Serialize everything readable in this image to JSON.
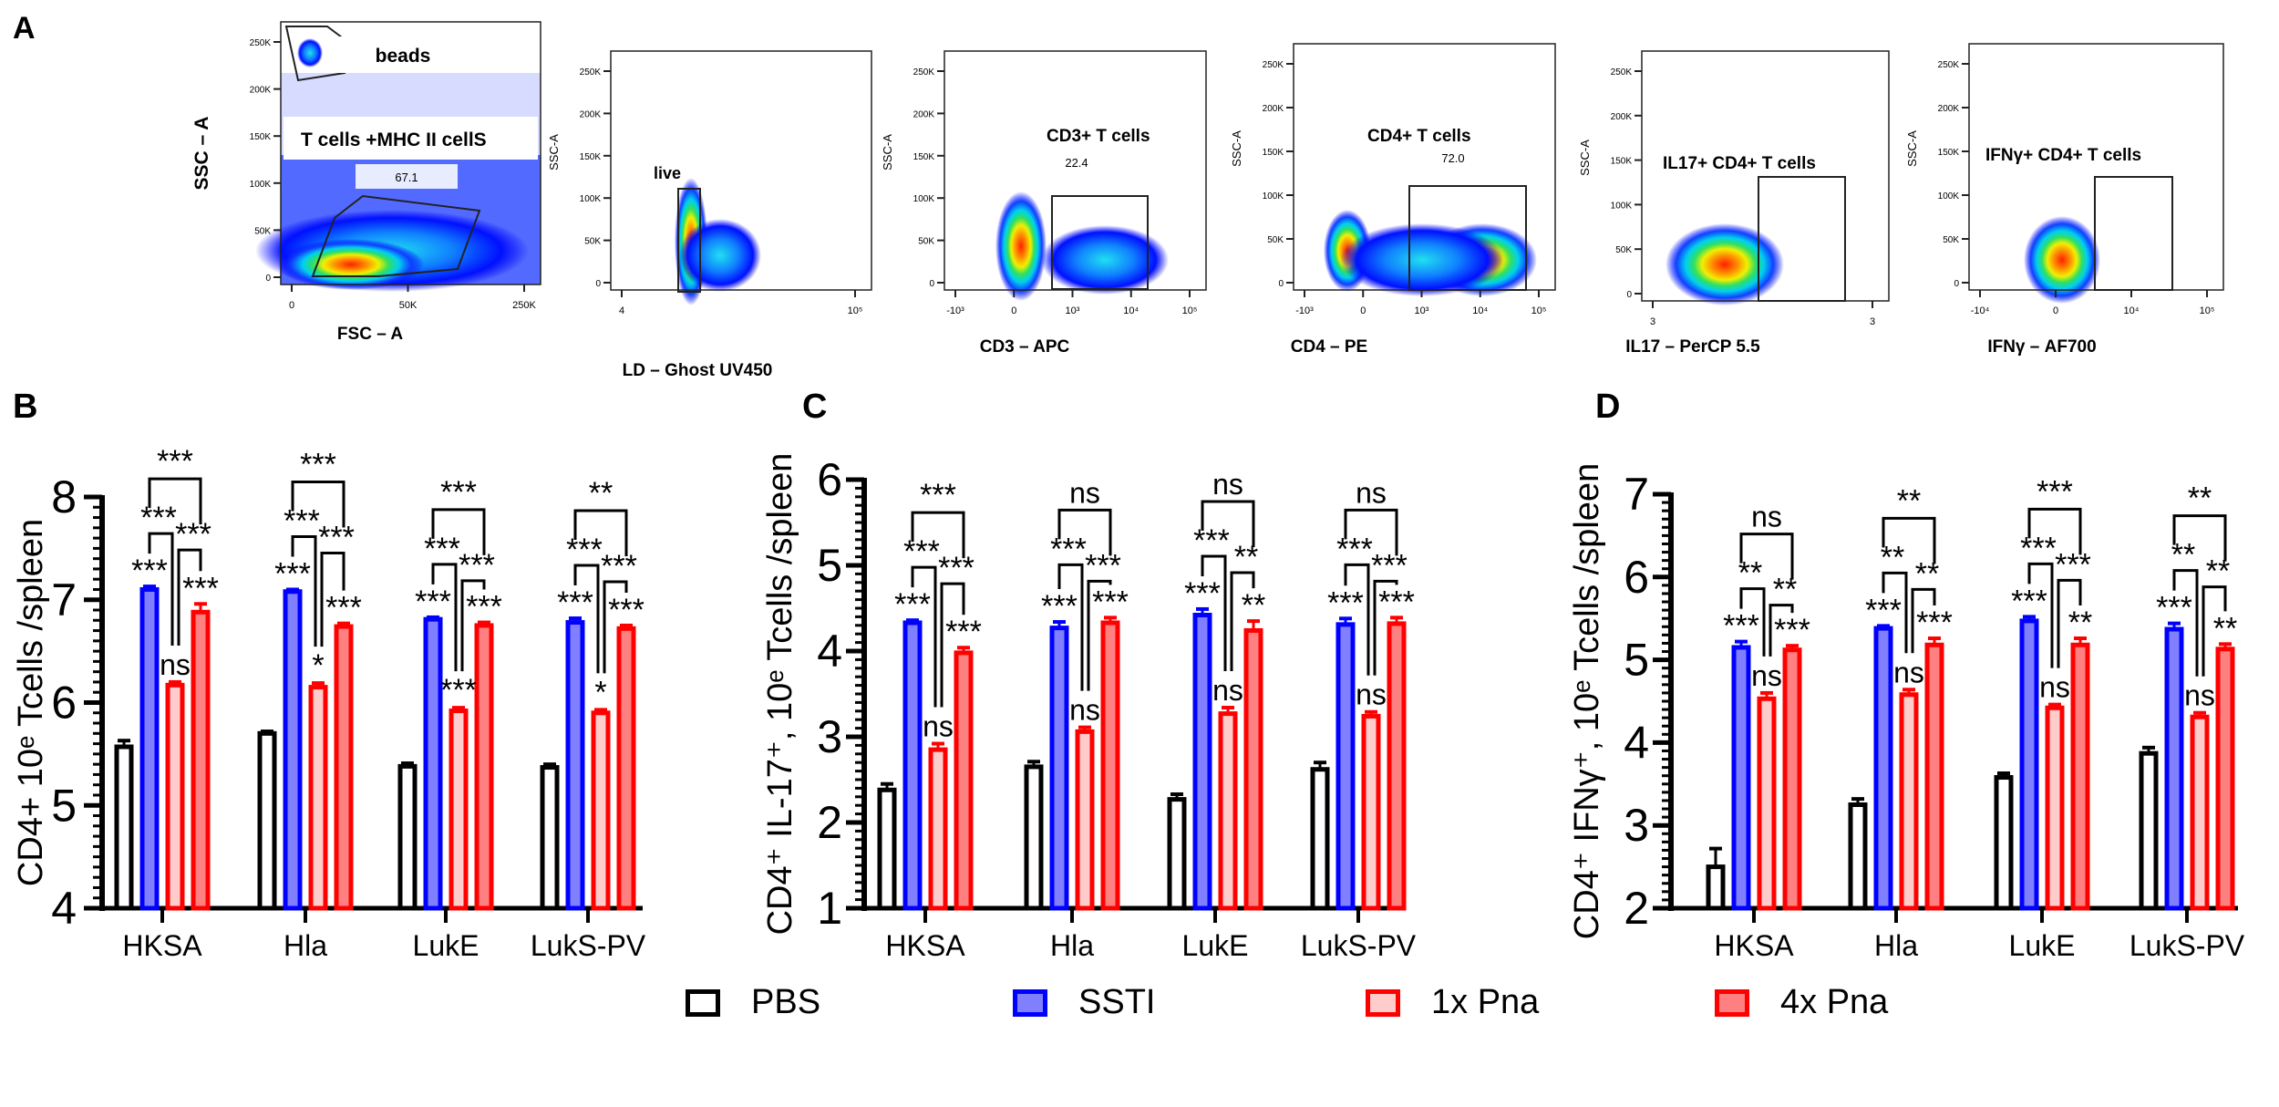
{
  "panel_labels": {
    "a": "A",
    "b": "B",
    "c": "C",
    "d": "D"
  },
  "flow_panels": [
    {
      "ylabel": "SSC – A",
      "xlabel": "FSC – A",
      "gates": [
        {
          "label": "beads"
        },
        {
          "label": "T cells +MHC II cellS",
          "value": "67.1"
        }
      ],
      "yticks": [
        "0",
        "50K",
        "100K",
        "150K",
        "200K",
        "250K"
      ],
      "xticks": [
        "0",
        "50K",
        "250K"
      ]
    },
    {
      "ylabel": "SSC-A",
      "xlabel": "LD – Ghost UV450",
      "gates": [
        {
          "label": "live"
        }
      ],
      "yticks": [
        "0",
        "50K",
        "100K",
        "150K",
        "200K",
        "250K"
      ],
      "xticks": [
        "4",
        "10⁵"
      ]
    },
    {
      "ylabel": "SSC-A",
      "xlabel": "CD3 – APC",
      "gates": [
        {
          "label": "CD3+ T cells",
          "value": "22.4"
        }
      ],
      "yticks": [
        "0",
        "50K",
        "100K",
        "150K",
        "200K",
        "250K"
      ],
      "xticks": [
        "-10³",
        "0",
        "10³",
        "10⁴",
        "10⁵"
      ]
    },
    {
      "ylabel": "SSC-A",
      "xlabel": "CD4 – PE",
      "gates": [
        {
          "label": "CD4+ T cells",
          "value": "72.0"
        }
      ],
      "yticks": [
        "0",
        "50K",
        "100K",
        "150K",
        "200K",
        "250K"
      ],
      "xticks": [
        "-10³",
        "0",
        "10³",
        "10⁴",
        "10⁵"
      ]
    },
    {
      "ylabel": "SSC-A",
      "xlabel": "IL17 – PerCP 5.5",
      "gates": [
        {
          "label": "IL17+ CD4+ T cells"
        }
      ],
      "yticks": [
        "0",
        "50K",
        "100K",
        "150K",
        "200K",
        "250K"
      ],
      "xticks": [
        "3",
        "3"
      ]
    },
    {
      "ylabel": "SSC-A",
      "xlabel": "IFNγ – AF700",
      "gates": [
        {
          "label": "IFNγ+ CD4+ T cells"
        }
      ],
      "yticks": [
        "0",
        "50K",
        "100K",
        "150K",
        "200K",
        "250K"
      ],
      "xticks": [
        "-10⁴",
        "0",
        "10⁴",
        "10⁵"
      ]
    }
  ],
  "legend": [
    {
      "name": "PBS",
      "fill": "#ffffff",
      "stroke": "#000000"
    },
    {
      "name": "SSTI",
      "fill": "#8080ff",
      "stroke": "#0000ff"
    },
    {
      "name": "1x Pna",
      "fill": "#ffcccc",
      "stroke": "#ff0000"
    },
    {
      "name": "4x Pna",
      "fill": "#ff8080",
      "stroke": "#ff0000"
    }
  ],
  "chart_data": [
    {
      "type": "bar",
      "panel": "B",
      "ylabel": "CD4+ 10ᵉ Tcells /spleen",
      "ylim": [
        4,
        8
      ],
      "yticks": [
        "4",
        "5",
        "6",
        "7",
        "8"
      ],
      "categories": [
        "HKSA",
        "Hla",
        "LukE",
        "LukS-PV"
      ],
      "series": [
        {
          "name": "PBS",
          "values": [
            5.57,
            5.7,
            5.38,
            5.37
          ],
          "errors": [
            0.06,
            0.02,
            0.03,
            0.03
          ]
        },
        {
          "name": "SSTI",
          "values": [
            7.1,
            7.08,
            6.81,
            6.78
          ],
          "errors": [
            0.03,
            0.02,
            0.02,
            0.04
          ]
        },
        {
          "name": "1x Pna",
          "values": [
            6.17,
            6.15,
            5.92,
            5.9
          ],
          "errors": [
            0.03,
            0.04,
            0.03,
            0.03
          ]
        },
        {
          "name": "4x Pna",
          "values": [
            6.88,
            6.74,
            6.75,
            6.72
          ],
          "errors": [
            0.08,
            0.03,
            0.03,
            0.03
          ]
        }
      ],
      "annotations": [
        {
          "ssti": "***",
          "x1": "ns",
          "x4": "***",
          "ssti_vs_1x": "***",
          "1x_vs_4x": "***",
          "ssti_vs_4x": "***"
        },
        {
          "ssti": "***",
          "x1": "*",
          "x4": "***",
          "ssti_vs_1x": "***",
          "1x_vs_4x": "***",
          "ssti_vs_4x": "***"
        },
        {
          "ssti": "***",
          "x1": "***",
          "x4": "***",
          "ssti_vs_1x": "***",
          "1x_vs_4x": "***",
          "ssti_vs_4x": "***"
        },
        {
          "ssti": "***",
          "x1": "*",
          "x4": "***",
          "ssti_vs_1x": "***",
          "1x_vs_4x": "***",
          "ssti_vs_4x": "**"
        }
      ]
    },
    {
      "type": "bar",
      "panel": "C",
      "ylabel": "CD4⁺ IL-17⁺, 10ᵉ Tcells /spleen",
      "ylim": [
        1,
        6
      ],
      "yticks": [
        "1",
        "2",
        "3",
        "4",
        "5",
        "6"
      ],
      "categories": [
        "HKSA",
        "Hla",
        "LukE",
        "LukS-PV"
      ],
      "series": [
        {
          "name": "PBS",
          "values": [
            2.38,
            2.65,
            2.27,
            2.62
          ],
          "errors": [
            0.07,
            0.06,
            0.06,
            0.08
          ]
        },
        {
          "name": "SSTI",
          "values": [
            4.33,
            4.27,
            4.42,
            4.31
          ],
          "errors": [
            0.03,
            0.07,
            0.07,
            0.07
          ]
        },
        {
          "name": "1x Pna",
          "values": [
            2.85,
            3.06,
            3.27,
            3.24
          ],
          "errors": [
            0.07,
            0.05,
            0.07,
            0.05
          ]
        },
        {
          "name": "4x Pna",
          "values": [
            3.98,
            4.33,
            4.24,
            4.32
          ],
          "errors": [
            0.06,
            0.06,
            0.11,
            0.07
          ]
        }
      ],
      "annotations": [
        {
          "ssti": "***",
          "x1": "ns",
          "x4": "***",
          "ssti_vs_1x": "***",
          "1x_vs_4x": "***",
          "ssti_vs_4x": "***"
        },
        {
          "ssti": "***",
          "x1": "ns",
          "x4": "***",
          "ssti_vs_1x": "***",
          "1x_vs_4x": "***",
          "ssti_vs_4x": "ns"
        },
        {
          "ssti": "***",
          "x1": "ns",
          "x4": "**",
          "ssti_vs_1x": "***",
          "1x_vs_4x": "**",
          "ssti_vs_4x": "ns"
        },
        {
          "ssti": "***",
          "x1": "ns",
          "x4": "***",
          "ssti_vs_1x": "***",
          "1x_vs_4x": "***",
          "ssti_vs_4x": "ns"
        }
      ]
    },
    {
      "type": "bar",
      "panel": "D",
      "ylabel": "CD4⁺ IFNγ⁺, 10ᵉ Tcells /spleen",
      "ylim": [
        2,
        7
      ],
      "yticks": [
        "2",
        "3",
        "4",
        "5",
        "6",
        "7"
      ],
      "categories": [
        "HKSA",
        "Hla",
        "LukE",
        "LukS-PV"
      ],
      "series": [
        {
          "name": "PBS",
          "values": [
            2.5,
            3.25,
            3.58,
            3.87
          ],
          "errors": [
            0.22,
            0.07,
            0.05,
            0.07
          ]
        },
        {
          "name": "SSTI",
          "values": [
            5.15,
            5.38,
            5.47,
            5.37
          ],
          "errors": [
            0.07,
            0.03,
            0.05,
            0.07
          ]
        },
        {
          "name": "1x Pna",
          "values": [
            4.53,
            4.58,
            4.42,
            4.31
          ],
          "errors": [
            0.07,
            0.06,
            0.04,
            0.05
          ]
        },
        {
          "name": "4x Pna",
          "values": [
            5.12,
            5.18,
            5.18,
            5.13
          ],
          "errors": [
            0.05,
            0.08,
            0.08,
            0.06
          ]
        }
      ],
      "annotations": [
        {
          "ssti": "***",
          "x1": "ns",
          "x4": "***",
          "ssti_vs_1x": "**",
          "1x_vs_4x": "**",
          "ssti_vs_4x": "ns"
        },
        {
          "ssti": "***",
          "x1": "ns",
          "x4": "***",
          "ssti_vs_1x": "**",
          "1x_vs_4x": "**",
          "ssti_vs_4x": "**"
        },
        {
          "ssti": "***",
          "x1": "ns",
          "x4": "**",
          "ssti_vs_1x": "***",
          "1x_vs_4x": "***",
          "ssti_vs_4x": "***"
        },
        {
          "ssti": "***",
          "x1": "ns",
          "x4": "**",
          "ssti_vs_1x": "**",
          "1x_vs_4x": "**",
          "ssti_vs_4x": "**"
        }
      ]
    }
  ]
}
